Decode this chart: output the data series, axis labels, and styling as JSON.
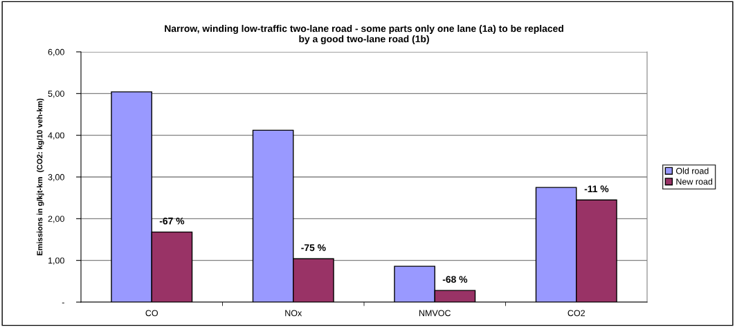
{
  "chart_data": {
    "type": "bar",
    "title": "Narrow, winding low-traffic two-lane road - some parts only one lane (1a) to be replaced\nby a good two-lane road (1b)",
    "ylabel": "Emissions in g/kjt-km  (CO2: kg/10 veh-km)",
    "categories": [
      "CO",
      "NOx",
      "NMVOC",
      "CO2"
    ],
    "series": [
      {
        "name": "Old road",
        "color": "#9999ff",
        "values": [
          5.04,
          4.12,
          0.86,
          2.75
        ]
      },
      {
        "name": "New road",
        "color": "#993366",
        "values": [
          1.68,
          1.04,
          0.28,
          2.45
        ]
      }
    ],
    "annotations": [
      {
        "text": "-67 %",
        "x": "CO",
        "y": 1.68
      },
      {
        "text": "-75 %",
        "x": "NOx",
        "y": 1.04
      },
      {
        "text": "-68 %",
        "x": "NMVOC",
        "y": 0.28
      },
      {
        "text": "-11 %",
        "x": "CO2",
        "y": 2.45
      }
    ],
    "ylim": [
      0,
      6
    ],
    "yticks": [
      {
        "value": 0,
        "label": "-"
      },
      {
        "value": 1,
        "label": "1,00"
      },
      {
        "value": 2,
        "label": "2,00"
      },
      {
        "value": 3,
        "label": "3,00"
      },
      {
        "value": 4,
        "label": "4,00"
      },
      {
        "value": 5,
        "label": "5,00"
      },
      {
        "value": 6,
        "label": "6,00"
      }
    ],
    "grid": "y",
    "legend": "right"
  }
}
